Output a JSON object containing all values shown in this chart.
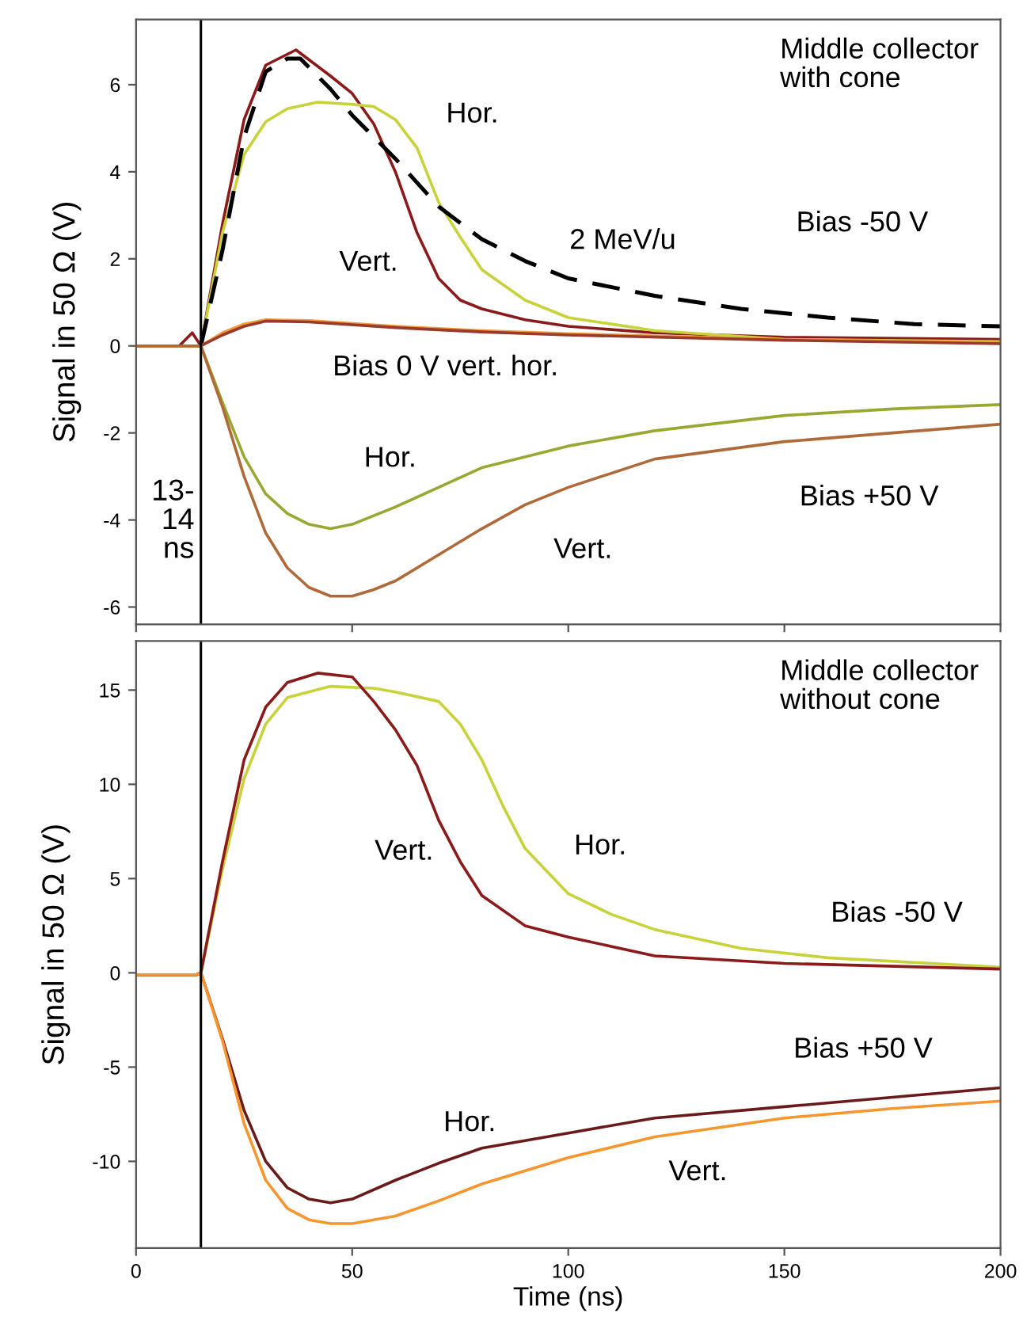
{
  "chart_data": [
    {
      "type": "line",
      "title": "Middle collector\nwith cone",
      "ylabel": "Signal in 50 Ω (V)",
      "xlim": [
        0,
        200
      ],
      "xticks": [
        0,
        50,
        100,
        150,
        200
      ],
      "ylim": [
        -6.4,
        7.5
      ],
      "yticks": [
        -6,
        -4,
        -2,
        0,
        2,
        4,
        6
      ],
      "tick_labels": "y",
      "grid": false,
      "legend": false,
      "series": [
        {
          "color": "#8b1a1a",
          "x": [
            0,
            5,
            10,
            12,
            13,
            14,
            15,
            20,
            25,
            30,
            37,
            45,
            50,
            55,
            60,
            65,
            70,
            75,
            80,
            90,
            100,
            120,
            150,
            200
          ],
          "values": [
            0,
            0,
            0,
            0.2,
            0.3,
            0.15,
            0,
            2.8,
            5.2,
            6.45,
            6.8,
            6.2,
            5.8,
            5.1,
            4.0,
            2.6,
            1.55,
            1.05,
            0.85,
            0.6,
            0.45,
            0.3,
            0.2,
            0.15
          ]
        },
        {
          "color": "#c8d23a",
          "x": [
            0,
            15,
            20,
            25,
            30,
            35,
            42,
            50,
            55,
            60,
            65,
            70,
            75,
            80,
            90,
            100,
            120,
            150,
            200
          ],
          "values": [
            0,
            0,
            2.6,
            4.4,
            5.15,
            5.45,
            5.6,
            5.55,
            5.5,
            5.2,
            4.55,
            3.3,
            2.5,
            1.75,
            1.05,
            0.65,
            0.35,
            0.15,
            0.1
          ]
        },
        {
          "color": "#000000",
          "line_style": "dashed",
          "x": [
            15,
            20,
            25,
            30,
            35,
            38,
            45,
            50,
            60,
            70,
            80,
            90,
            100,
            120,
            140,
            160,
            180,
            200
          ],
          "values": [
            0,
            2.2,
            4.8,
            6.3,
            6.6,
            6.6,
            5.9,
            5.3,
            4.3,
            3.2,
            2.45,
            1.95,
            1.55,
            1.15,
            0.85,
            0.65,
            0.5,
            0.45
          ]
        },
        {
          "color": "#f39c3c",
          "x": [
            0,
            15,
            20,
            25,
            30,
            40,
            60,
            80,
            100,
            150,
            200
          ],
          "values": [
            0,
            0,
            0.3,
            0.5,
            0.6,
            0.58,
            0.45,
            0.35,
            0.28,
            0.15,
            0.07
          ]
        },
        {
          "color": "#9a3a2a",
          "x": [
            0,
            15,
            20,
            25,
            30,
            40,
            60,
            80,
            100,
            150,
            200
          ],
          "values": [
            0,
            0,
            0.25,
            0.45,
            0.57,
            0.55,
            0.42,
            0.32,
            0.25,
            0.13,
            0.05
          ]
        },
        {
          "color": "#9aa832",
          "x": [
            0,
            15,
            20,
            25,
            30,
            35,
            40,
            45,
            50,
            60,
            70,
            80,
            100,
            120,
            150,
            175,
            200
          ],
          "values": [
            0,
            0,
            -1.3,
            -2.55,
            -3.4,
            -3.85,
            -4.1,
            -4.2,
            -4.1,
            -3.7,
            -3.25,
            -2.8,
            -2.3,
            -1.95,
            -1.6,
            -1.45,
            -1.35
          ]
        },
        {
          "color": "#b06a3a",
          "x": [
            0,
            15,
            20,
            25,
            30,
            35,
            40,
            45,
            50,
            55,
            60,
            70,
            80,
            90,
            100,
            120,
            150,
            175,
            200
          ],
          "values": [
            0,
            0,
            -1.4,
            -3.0,
            -4.3,
            -5.1,
            -5.55,
            -5.75,
            -5.75,
            -5.6,
            -5.4,
            -4.8,
            -4.2,
            -3.65,
            -3.25,
            -2.6,
            -2.2,
            -2.0,
            -1.8
          ]
        }
      ],
      "ref_lines": [
        {
          "axis": "x",
          "value": 15,
          "label": "13-\n14\nns"
        }
      ],
      "annotations": [
        "Hor.",
        "Vert.",
        "2 MeV/u",
        "Bias -50 V",
        "Bias 0 V vert. hor.",
        "Hor.",
        "Bias +50 V",
        "Vert."
      ]
    },
    {
      "type": "line",
      "title": "Middle collector\nwithout cone",
      "ylabel": "Signal in 50 Ω (V)",
      "xlabel": "Time (ns)",
      "xlim": [
        0,
        200
      ],
      "xticks": [
        0,
        50,
        100,
        150,
        200
      ],
      "ylim": [
        -14.6,
        17.6
      ],
      "yticks": [
        -10,
        -5,
        0,
        5,
        10,
        15
      ],
      "grid": false,
      "legend": false,
      "series": [
        {
          "color": "#c8d23a",
          "x": [
            0,
            14,
            15,
            20,
            25,
            30,
            35,
            45,
            55,
            60,
            70,
            75,
            80,
            85,
            90,
            100,
            110,
            120,
            140,
            160,
            200
          ],
          "values": [
            -0.1,
            -0.1,
            0,
            5.5,
            10.3,
            13.2,
            14.6,
            15.2,
            15.1,
            14.9,
            14.4,
            13.2,
            11.3,
            8.8,
            6.6,
            4.2,
            3.1,
            2.3,
            1.3,
            0.8,
            0.3
          ]
        },
        {
          "color": "#8b1a1a",
          "x": [
            0,
            14,
            15,
            20,
            25,
            30,
            35,
            42,
            50,
            55,
            60,
            65,
            70,
            75,
            80,
            90,
            100,
            120,
            150,
            200
          ],
          "values": [
            -0.1,
            -0.1,
            0,
            5.9,
            11.3,
            14.1,
            15.4,
            15.9,
            15.7,
            14.4,
            12.9,
            11.0,
            8.1,
            5.9,
            4.1,
            2.5,
            1.9,
            0.9,
            0.5,
            0.2
          ]
        },
        {
          "color": "#6b1a1a",
          "x": [
            0,
            14,
            15,
            20,
            25,
            30,
            35,
            40,
            45,
            50,
            60,
            70,
            80,
            100,
            120,
            150,
            175,
            200
          ],
          "values": [
            -0.1,
            -0.1,
            0,
            -3.5,
            -7.3,
            -10.0,
            -11.4,
            -12.0,
            -12.2,
            -12.0,
            -11.0,
            -10.1,
            -9.3,
            -8.5,
            -7.7,
            -7.1,
            -6.6,
            -6.1
          ]
        },
        {
          "color": "#f7962f",
          "x": [
            0,
            14,
            15,
            20,
            25,
            30,
            35,
            40,
            45,
            50,
            60,
            70,
            80,
            100,
            120,
            150,
            175,
            200
          ],
          "values": [
            -0.1,
            -0.1,
            0,
            -3.6,
            -8.0,
            -11.0,
            -12.5,
            -13.1,
            -13.3,
            -13.3,
            -12.9,
            -12.1,
            -11.2,
            -9.8,
            -8.7,
            -7.7,
            -7.2,
            -6.8
          ]
        }
      ],
      "ref_lines": [
        {
          "axis": "x",
          "value": 15
        }
      ],
      "annotations": [
        "Vert.",
        "Hor.",
        "Bias -50 V",
        "Bias +50 V",
        "Hor.",
        "Vert."
      ]
    }
  ]
}
